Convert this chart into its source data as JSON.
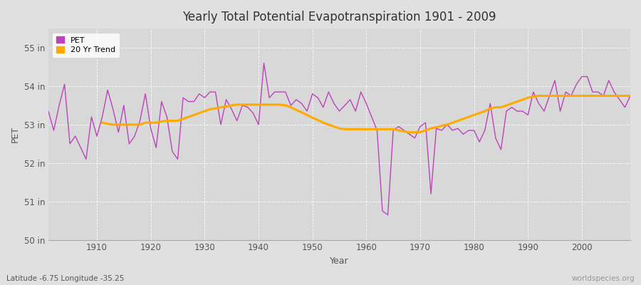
{
  "title": "Yearly Total Potential Evapotranspiration 1901 - 2009",
  "xlabel": "Year",
  "ylabel": "PET",
  "footnote_left": "Latitude -6.75 Longitude -35.25",
  "footnote_right": "worldspecies.org",
  "pet_color": "#bb44bb",
  "trend_color": "#ffaa00",
  "background_color": "#e0e0e0",
  "plot_bg_color": "#d8d8d8",
  "ylim": [
    50,
    55.5
  ],
  "yticks": [
    50,
    51,
    52,
    53,
    54,
    55
  ],
  "ytick_labels": [
    "50 in",
    "51 in",
    "52 in",
    "53 in",
    "54 in",
    "55 in"
  ],
  "years": [
    1901,
    1902,
    1903,
    1904,
    1905,
    1906,
    1907,
    1908,
    1909,
    1910,
    1911,
    1912,
    1913,
    1914,
    1915,
    1916,
    1917,
    1918,
    1919,
    1920,
    1921,
    1922,
    1923,
    1924,
    1925,
    1926,
    1927,
    1928,
    1929,
    1930,
    1931,
    1932,
    1933,
    1934,
    1935,
    1936,
    1937,
    1938,
    1939,
    1940,
    1941,
    1942,
    1943,
    1944,
    1945,
    1946,
    1947,
    1948,
    1949,
    1950,
    1951,
    1952,
    1953,
    1954,
    1955,
    1956,
    1957,
    1958,
    1959,
    1960,
    1961,
    1962,
    1963,
    1964,
    1965,
    1966,
    1967,
    1968,
    1969,
    1970,
    1971,
    1972,
    1973,
    1974,
    1975,
    1976,
    1977,
    1978,
    1979,
    1980,
    1981,
    1982,
    1983,
    1984,
    1985,
    1986,
    1987,
    1988,
    1989,
    1990,
    1991,
    1992,
    1993,
    1994,
    1995,
    1996,
    1997,
    1998,
    1999,
    2000,
    2001,
    2002,
    2003,
    2004,
    2005,
    2006,
    2007,
    2008,
    2009
  ],
  "pet_values": [
    53.35,
    52.85,
    53.5,
    54.05,
    52.5,
    52.7,
    52.4,
    52.1,
    53.2,
    52.7,
    53.2,
    53.9,
    53.4,
    52.8,
    53.5,
    52.5,
    52.7,
    53.1,
    53.8,
    52.9,
    52.4,
    53.6,
    53.2,
    52.3,
    52.1,
    53.7,
    53.6,
    53.6,
    53.8,
    53.7,
    53.85,
    53.85,
    53.0,
    53.65,
    53.4,
    53.1,
    53.5,
    53.45,
    53.3,
    53.0,
    54.6,
    53.7,
    53.85,
    53.85,
    53.85,
    53.5,
    53.65,
    53.55,
    53.35,
    53.8,
    53.7,
    53.45,
    53.85,
    53.55,
    53.35,
    53.5,
    53.65,
    53.35,
    53.85,
    53.55,
    53.2,
    52.85,
    50.75,
    50.65,
    52.85,
    52.95,
    52.85,
    52.75,
    52.65,
    52.95,
    53.05,
    51.2,
    52.9,
    52.85,
    53.0,
    52.85,
    52.9,
    52.75,
    52.85,
    52.85,
    52.55,
    52.85,
    53.55,
    52.65,
    52.35,
    53.35,
    53.45,
    53.35,
    53.35,
    53.25,
    53.85,
    53.55,
    53.35,
    53.75,
    54.15,
    53.35,
    53.85,
    53.75,
    54.05,
    54.25,
    54.25,
    53.85,
    53.85,
    53.75,
    54.15,
    53.85,
    53.65,
    53.45,
    53.75
  ],
  "trend_values": [
    null,
    null,
    null,
    null,
    null,
    null,
    null,
    null,
    null,
    null,
    53.05,
    53.02,
    53.0,
    53.0,
    53.0,
    53.0,
    53.0,
    53.0,
    53.05,
    53.05,
    53.05,
    53.08,
    53.1,
    53.1,
    53.1,
    53.15,
    53.2,
    53.25,
    53.3,
    53.35,
    53.4,
    53.42,
    53.45,
    53.47,
    53.5,
    53.52,
    53.52,
    53.52,
    53.52,
    53.52,
    53.52,
    53.52,
    53.52,
    53.52,
    53.5,
    53.45,
    53.38,
    53.32,
    53.25,
    53.18,
    53.12,
    53.05,
    53.0,
    52.95,
    52.9,
    52.88,
    52.88,
    52.88,
    52.88,
    52.88,
    52.88,
    52.88,
    52.88,
    52.88,
    52.88,
    52.85,
    52.82,
    52.8,
    52.8,
    52.8,
    52.85,
    52.9,
    52.93,
    52.97,
    53.0,
    53.05,
    53.1,
    53.15,
    53.2,
    53.25,
    53.3,
    53.35,
    53.42,
    53.45,
    53.45,
    53.5,
    53.55,
    53.6,
    53.65,
    53.7,
    53.73,
    53.75,
    53.75,
    53.75,
    53.75,
    53.75,
    53.75,
    53.75,
    53.75,
    53.75,
    53.75,
    53.75,
    53.75,
    53.75,
    53.75,
    53.75,
    53.75,
    53.75,
    53.75
  ]
}
